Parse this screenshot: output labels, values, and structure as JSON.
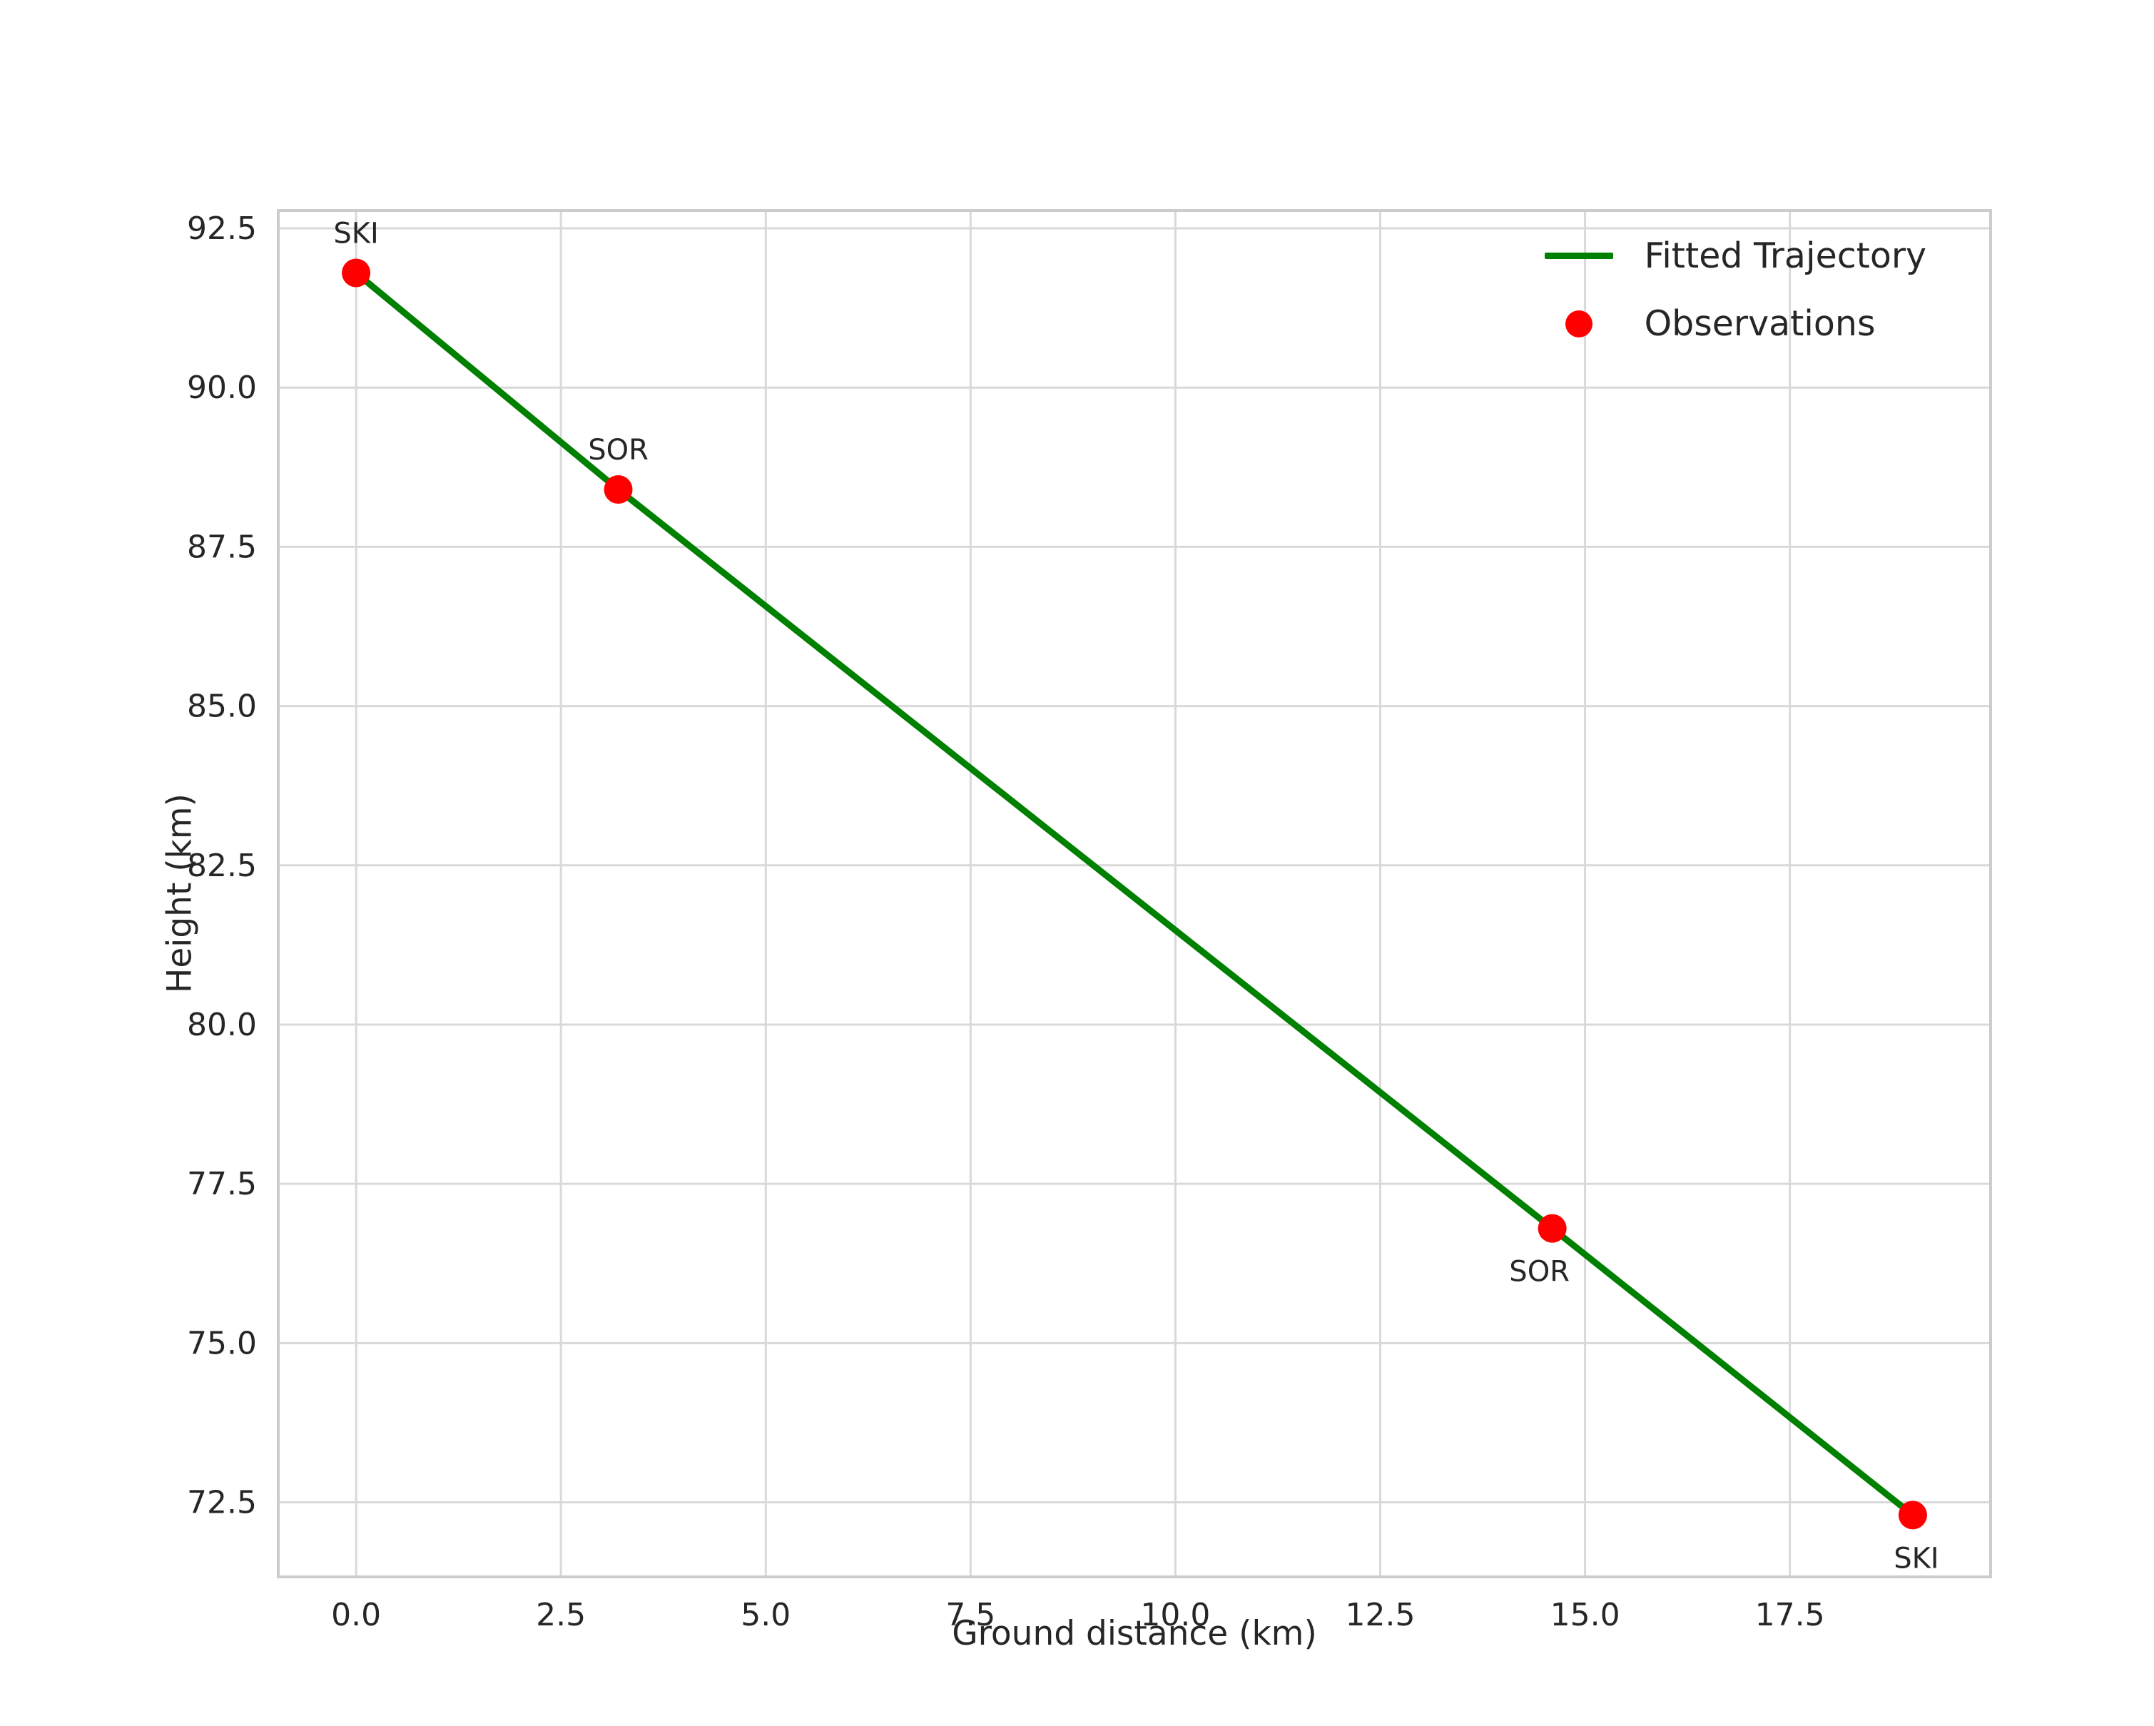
{
  "figure": {
    "background": "#ffffff"
  },
  "chart_data": {
    "type": "line",
    "title": "",
    "xlabel": "Ground distance (km)",
    "ylabel": "Height (km)",
    "xlim": [
      -0.95,
      19.95
    ],
    "ylim": [
      71.33,
      92.78
    ],
    "grid": true,
    "xticks": {
      "values": [
        0.0,
        2.5,
        5.0,
        7.5,
        10.0,
        12.5,
        15.0,
        17.5
      ],
      "labels": [
        "0.0",
        "2.5",
        "5.0",
        "7.5",
        "10.0",
        "12.5",
        "15.0",
        "17.5"
      ]
    },
    "yticks": {
      "values": [
        72.5,
        75.0,
        77.5,
        80.0,
        82.5,
        85.0,
        87.5,
        90.0,
        92.5
      ],
      "labels": [
        "72.5",
        "75.0",
        "77.5",
        "80.0",
        "82.5",
        "85.0",
        "87.5",
        "90.0",
        "92.5"
      ]
    },
    "legend": {
      "position": "upper right",
      "entries": [
        {
          "label": "Fitted Trajectory",
          "marker": "line",
          "color": "#008000"
        },
        {
          "label": "Observations",
          "marker": "dot",
          "color": "#ff0000"
        }
      ]
    },
    "series": [
      {
        "name": "Fitted Trajectory",
        "type": "line",
        "color": "#008000",
        "x": [
          0.0,
          3.2,
          14.6,
          19.0
        ],
        "y": [
          91.8,
          88.4,
          76.8,
          72.3
        ]
      },
      {
        "name": "Observations",
        "type": "scatter",
        "color": "#ff0000",
        "points": [
          {
            "x": 0.0,
            "y": 91.8,
            "label": "SKI",
            "label_position": "above",
            "label_dx": 0
          },
          {
            "x": 3.2,
            "y": 88.4,
            "label": "SOR",
            "label_position": "above",
            "label_dx": 0
          },
          {
            "x": 14.6,
            "y": 76.8,
            "label": "SOR",
            "label_position": "below",
            "label_dx": -18
          },
          {
            "x": 19.0,
            "y": 72.3,
            "label": "SKI",
            "label_position": "below",
            "label_dx": 5
          }
        ]
      }
    ],
    "style": {
      "grid_color": "#d9d9d9",
      "spine_color": "#cccccc",
      "text_color": "#262626",
      "tick_font_size": 44,
      "point_label_font_size": 40
    }
  }
}
